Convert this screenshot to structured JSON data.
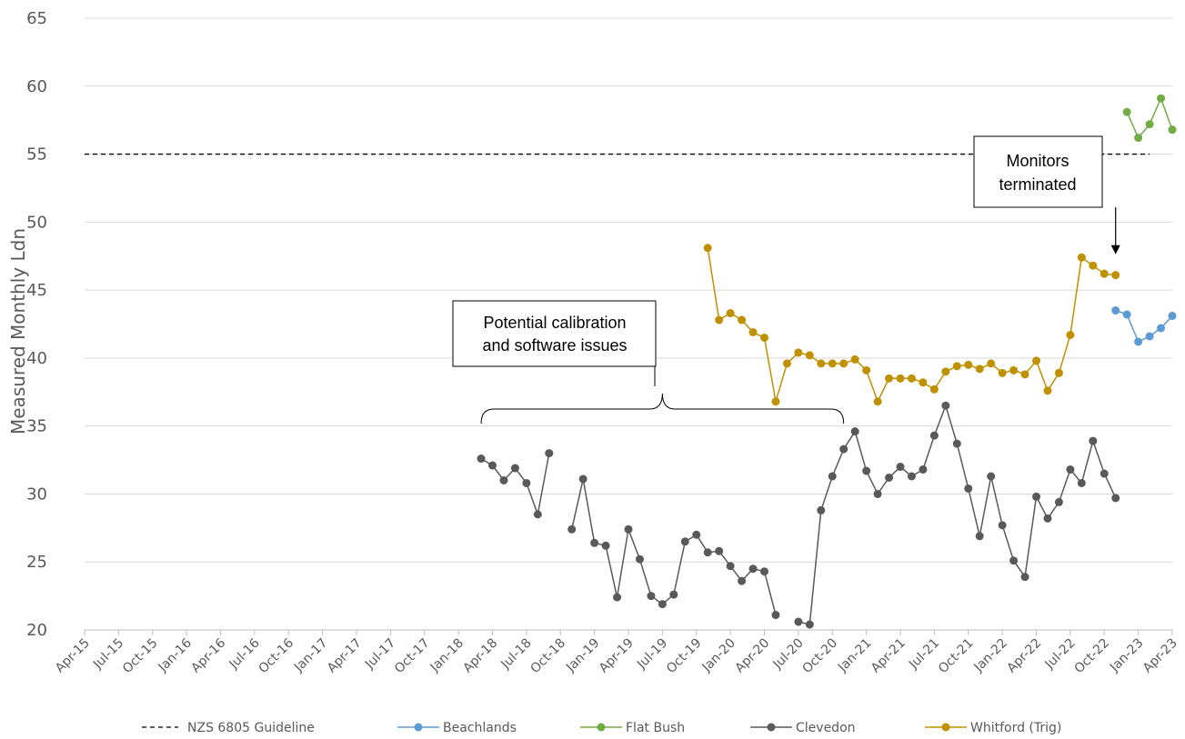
{
  "chart_data": {
    "type": "line",
    "ylabel": "Measured Monthly Ldn",
    "ylim": [
      20,
      65
    ],
    "yticks": [
      20,
      25,
      30,
      35,
      40,
      45,
      50,
      55,
      60,
      65
    ],
    "x_tick_labels": [
      "Apr-15",
      "Jul-15",
      "Oct-15",
      "Jan-16",
      "Apr-16",
      "Jul-16",
      "Oct-16",
      "Jan-17",
      "Apr-17",
      "Jul-17",
      "Oct-17",
      "Jan-18",
      "Apr-18",
      "Jul-18",
      "Oct-18",
      "Jan-19",
      "Apr-19",
      "Jul-19",
      "Oct-19",
      "Jan-20",
      "Apr-20",
      "Jul-20",
      "Oct-20",
      "Jan-21",
      "Apr-21",
      "Jul-21",
      "Oct-21",
      "Jan-22",
      "Apr-22",
      "Jul-22",
      "Oct-22",
      "Jan-23",
      "Apr-23"
    ],
    "x_start": "Apr-15",
    "grid": true,
    "legend_position": "bottom",
    "reference_line": {
      "name": "NZS 6805 Guideline",
      "value": 55,
      "x_from": "Apr-15",
      "x_to": "Feb-23",
      "color": "#000000"
    },
    "series": [
      {
        "name": "Beachlands",
        "color": "#5B9BD5",
        "points": [
          [
            "Nov-22",
            43.5
          ],
          [
            "Dec-22",
            43.2
          ],
          [
            "Jan-23",
            41.2
          ],
          [
            "Feb-23",
            41.6
          ],
          [
            "Mar-23",
            42.2
          ],
          [
            "Apr-23",
            43.1
          ]
        ]
      },
      {
        "name": "Flat Bush",
        "color": "#70AD47",
        "points": [
          [
            "Dec-22",
            58.1
          ],
          [
            "Jan-23",
            56.2
          ],
          [
            "Feb-23",
            57.2
          ],
          [
            "Mar-23",
            59.1
          ],
          [
            "Apr-23",
            56.8
          ]
        ]
      },
      {
        "name": "Clevedon",
        "color": "#595959",
        "points": [
          [
            "Mar-18",
            32.6
          ],
          [
            "Apr-18",
            32.1
          ],
          [
            "May-18",
            31.0
          ],
          [
            "Jun-18",
            31.9
          ],
          [
            "Jul-18",
            30.8
          ],
          [
            "Aug-18",
            28.5
          ],
          [
            "Sep-18",
            33.0
          ],
          [
            "Oct-18",
            null
          ],
          [
            "Nov-18",
            27.4
          ],
          [
            "Dec-18",
            31.1
          ],
          [
            "Jan-19",
            26.4
          ],
          [
            "Feb-19",
            26.2
          ],
          [
            "Mar-19",
            22.4
          ],
          [
            "Apr-19",
            27.4
          ],
          [
            "May-19",
            25.2
          ],
          [
            "Jun-19",
            22.5
          ],
          [
            "Jul-19",
            21.9
          ],
          [
            "Aug-19",
            22.6
          ],
          [
            "Sep-19",
            26.5
          ],
          [
            "Oct-19",
            27.0
          ],
          [
            "Nov-19",
            25.7
          ],
          [
            "Dec-19",
            25.8
          ],
          [
            "Jan-20",
            24.7
          ],
          [
            "Feb-20",
            23.6
          ],
          [
            "Mar-20",
            24.5
          ],
          [
            "Apr-20",
            24.3
          ],
          [
            "May-20",
            21.1
          ],
          [
            "Jun-20",
            null
          ],
          [
            "Jul-20",
            20.6
          ],
          [
            "Aug-20",
            20.4
          ],
          [
            "Sep-20",
            28.8
          ],
          [
            "Oct-20",
            31.3
          ],
          [
            "Nov-20",
            33.3
          ],
          [
            "Dec-20",
            34.6
          ],
          [
            "Jan-21",
            31.7
          ],
          [
            "Feb-21",
            30.0
          ],
          [
            "Mar-21",
            31.2
          ],
          [
            "Apr-21",
            32.0
          ],
          [
            "May-21",
            31.3
          ],
          [
            "Jun-21",
            31.8
          ],
          [
            "Jul-21",
            34.3
          ],
          [
            "Aug-21",
            36.5
          ],
          [
            "Sep-21",
            33.7
          ],
          [
            "Oct-21",
            30.4
          ],
          [
            "Nov-21",
            26.9
          ],
          [
            "Dec-21",
            31.3
          ],
          [
            "Jan-22",
            27.7
          ],
          [
            "Feb-22",
            25.1
          ],
          [
            "Mar-22",
            23.9
          ],
          [
            "Apr-22",
            29.8
          ],
          [
            "May-22",
            28.2
          ],
          [
            "Jun-22",
            29.4
          ],
          [
            "Jul-22",
            31.8
          ],
          [
            "Aug-22",
            30.8
          ],
          [
            "Sep-22",
            33.9
          ],
          [
            "Oct-22",
            31.5
          ],
          [
            "Nov-22",
            29.7
          ]
        ]
      },
      {
        "name": "Whitford (Trig)",
        "color": "#BF9000",
        "points": [
          [
            "Nov-19",
            48.1
          ],
          [
            "Dec-19",
            42.8
          ],
          [
            "Jan-20",
            43.3
          ],
          [
            "Feb-20",
            42.8
          ],
          [
            "Mar-20",
            41.9
          ],
          [
            "Apr-20",
            41.5
          ],
          [
            "May-20",
            36.8
          ],
          [
            "Jun-20",
            39.6
          ],
          [
            "Jul-20",
            40.4
          ],
          [
            "Aug-20",
            40.2
          ],
          [
            "Sep-20",
            39.6
          ],
          [
            "Oct-20",
            39.6
          ],
          [
            "Nov-20",
            39.6
          ],
          [
            "Dec-20",
            39.9
          ],
          [
            "Jan-21",
            39.1
          ],
          [
            "Feb-21",
            36.8
          ],
          [
            "Mar-21",
            38.5
          ],
          [
            "Apr-21",
            38.5
          ],
          [
            "May-21",
            38.5
          ],
          [
            "Jun-21",
            38.2
          ],
          [
            "Jul-21",
            37.7
          ],
          [
            "Aug-21",
            39.0
          ],
          [
            "Sep-21",
            39.4
          ],
          [
            "Oct-21",
            39.5
          ],
          [
            "Nov-21",
            39.2
          ],
          [
            "Dec-21",
            39.6
          ],
          [
            "Jan-22",
            38.9
          ],
          [
            "Feb-22",
            39.1
          ],
          [
            "Mar-22",
            38.8
          ],
          [
            "Apr-22",
            39.8
          ],
          [
            "May-22",
            37.6
          ],
          [
            "Jun-22",
            38.9
          ],
          [
            "Jul-22",
            41.7
          ],
          [
            "Aug-22",
            47.4
          ],
          [
            "Sep-22",
            46.8
          ],
          [
            "Oct-22",
            46.2
          ],
          [
            "Nov-22",
            46.1
          ]
        ]
      }
    ],
    "annotations": [
      {
        "id": "calibration",
        "text_lines": [
          "Potential calibration",
          "and software issues"
        ],
        "bracket_from": "Mar-18",
        "bracket_to": "Nov-20"
      },
      {
        "id": "terminated",
        "text_lines": [
          "Monitors",
          "terminated"
        ],
        "arrow_to_x": "Nov-22",
        "arrow_to_y": 47.5
      }
    ]
  }
}
